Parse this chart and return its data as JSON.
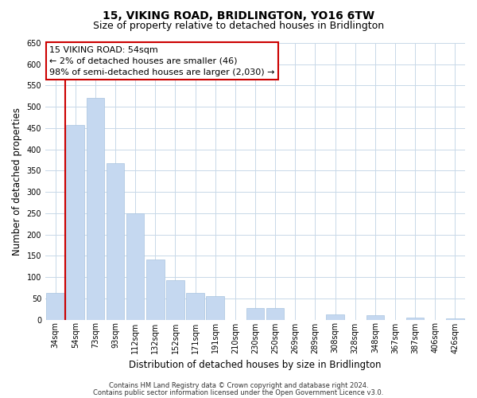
{
  "title": "15, VIKING ROAD, BRIDLINGTON, YO16 6TW",
  "subtitle": "Size of property relative to detached houses in Bridlington",
  "xlabel": "Distribution of detached houses by size in Bridlington",
  "ylabel": "Number of detached properties",
  "categories": [
    "34sqm",
    "54sqm",
    "73sqm",
    "93sqm",
    "112sqm",
    "132sqm",
    "152sqm",
    "171sqm",
    "191sqm",
    "210sqm",
    "230sqm",
    "250sqm",
    "269sqm",
    "289sqm",
    "308sqm",
    "328sqm",
    "348sqm",
    "367sqm",
    "387sqm",
    "406sqm",
    "426sqm"
  ],
  "values": [
    62,
    457,
    521,
    368,
    250,
    142,
    93,
    62,
    56,
    0,
    28,
    28,
    0,
    0,
    12,
    0,
    10,
    0,
    5,
    0,
    3
  ],
  "bar_color": "#c5d8f0",
  "bar_edge_color": "#a8c4e0",
  "vline_color": "#cc0000",
  "annotation_box_text_line1": "15 VIKING ROAD: 54sqm",
  "annotation_box_text_line2": "← 2% of detached houses are smaller (46)",
  "annotation_box_text_line3": "98% of semi-detached houses are larger (2,030) →",
  "ylim": [
    0,
    650
  ],
  "footnote1": "Contains HM Land Registry data © Crown copyright and database right 2024.",
  "footnote2": "Contains public sector information licensed under the Open Government Licence v3.0.",
  "background_color": "#ffffff",
  "grid_color": "#c8d8e8",
  "title_fontsize": 10,
  "subtitle_fontsize": 9,
  "axis_label_fontsize": 8.5,
  "tick_fontsize": 7,
  "annotation_fontsize": 8,
  "footnote_fontsize": 6
}
